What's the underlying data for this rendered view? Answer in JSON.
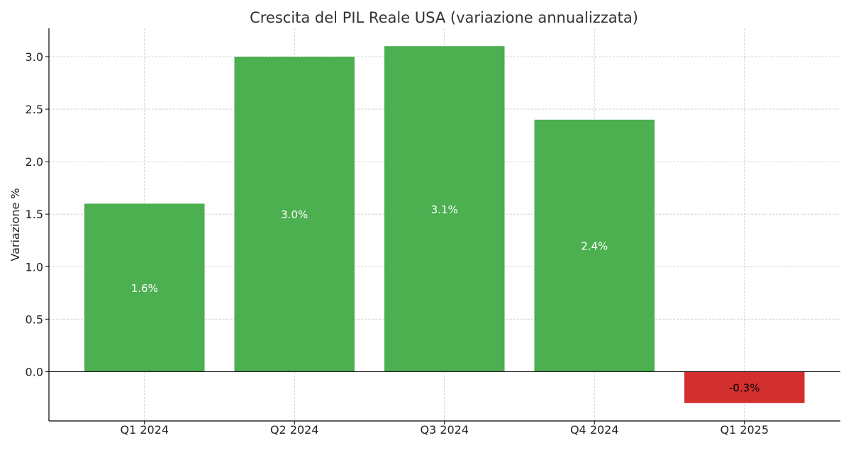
{
  "chart_data": {
    "type": "bar",
    "title": "Crescita del PIL Reale USA (variazione annualizzata)",
    "xlabel": "",
    "ylabel": "Variazione %",
    "categories": [
      "Q1 2024",
      "Q2 2024",
      "Q3 2024",
      "Q4 2024",
      "Q1 2025"
    ],
    "values": [
      1.6,
      3.0,
      3.1,
      2.4,
      -0.3
    ],
    "data_labels": [
      "1.6%",
      "3.0%",
      "3.1%",
      "2.4%",
      "-0.3%"
    ],
    "ylim": [
      -0.47,
      3.27
    ],
    "yticks": [
      0.0,
      0.5,
      1.0,
      1.5,
      2.0,
      2.5,
      3.0
    ],
    "ytick_labels": [
      "0.0",
      "0.5",
      "1.0",
      "1.5",
      "2.0",
      "2.5",
      "3.0"
    ],
    "grid": true,
    "colors": {
      "positive": "#4caf50",
      "negative": "#d32f2f",
      "axis": "#000000",
      "grid": "#c8c8c8",
      "title": "#333333",
      "label_on_positive": "#ffffff",
      "label_on_negative": "#000000"
    }
  }
}
